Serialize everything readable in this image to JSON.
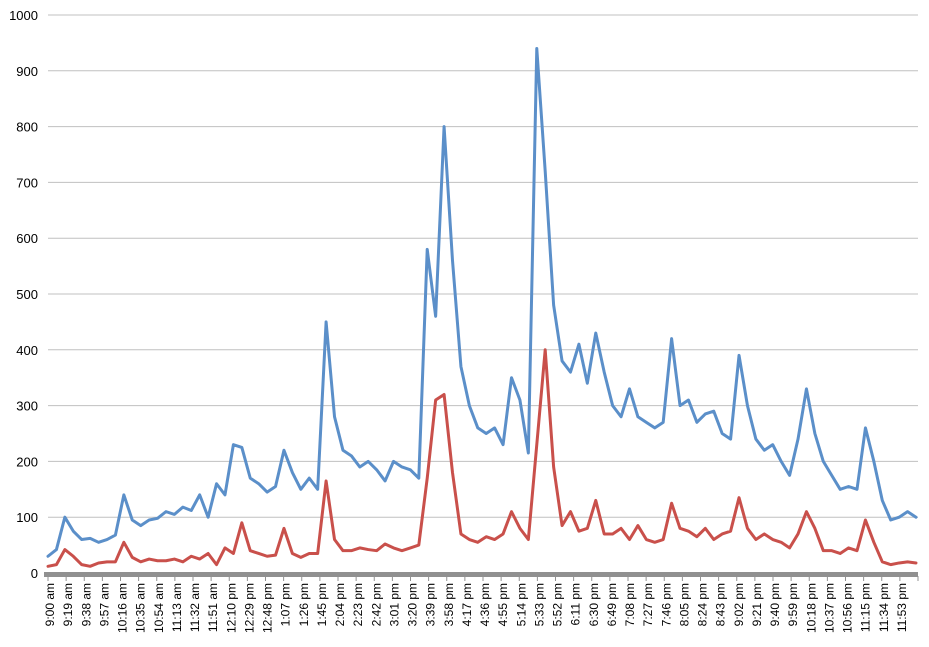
{
  "colors": {
    "series1": "#5b8fc9",
    "series2": "#c9504b",
    "grid": "#c0c0c0",
    "axis": "#909090",
    "text": "#000000"
  },
  "chart_data": {
    "type": "line",
    "title": "",
    "xlabel": "",
    "ylabel": "",
    "ylim": [
      0,
      1000
    ],
    "y_ticks": [
      "0",
      "100",
      "200",
      "300",
      "400",
      "500",
      "600",
      "700",
      "800",
      "900",
      "1000"
    ],
    "grid": true,
    "legend": "none",
    "x_tick_labels": [
      "9:00 am",
      "9:19 am",
      "9:38 am",
      "9:57 am",
      "10:16 am",
      "10:35 am",
      "10:54 am",
      "11:13 am",
      "11:32 am",
      "11:51 am",
      "12:10 pm",
      "12:29 pm",
      "12:48 pm",
      "1:07 pm",
      "1:26 pm",
      "1:45 pm",
      "2:04 pm",
      "2:23 pm",
      "2:42 pm",
      "3:01 pm",
      "3:20 pm",
      "3:39 pm",
      "3:58 pm",
      "4:17 pm",
      "4:36 pm",
      "4:55 pm",
      "5:14 pm",
      "5:33 pm",
      "5:52 pm",
      "6:11 pm",
      "6:30 pm",
      "6:49 pm",
      "7:08 pm",
      "7:27 pm",
      "7:46 pm",
      "8:05 pm",
      "8:24 pm",
      "8:43 pm",
      "9:02 pm",
      "9:21 pm",
      "9:40 pm",
      "9:59 pm",
      "10:18 pm",
      "10:37 pm",
      "10:56 pm",
      "11:15 pm",
      "11:34 pm",
      "11:53 pm"
    ],
    "series": [
      {
        "values": [
          30,
          42,
          100,
          75,
          60,
          62,
          55,
          60,
          68,
          140,
          95,
          85,
          95,
          98,
          110,
          105,
          118,
          112,
          140,
          100,
          160,
          140,
          230,
          225,
          170,
          160,
          145,
          155,
          220,
          180,
          150,
          170,
          150,
          450,
          280,
          220,
          210,
          190,
          200,
          185,
          165,
          200,
          190,
          185,
          170,
          580,
          460,
          800,
          560,
          370,
          300,
          260,
          250,
          260,
          230,
          350,
          310,
          215,
          940,
          720,
          480,
          380,
          360,
          410,
          340,
          430,
          360,
          300,
          280,
          330,
          280,
          270,
          260,
          270,
          420,
          300,
          310,
          270,
          285,
          290,
          250,
          240,
          390,
          300,
          240,
          220,
          230,
          200,
          175,
          240,
          330,
          250,
          200,
          175,
          150,
          155,
          150,
          260,
          200,
          130,
          95,
          100,
          110,
          100
        ]
      },
      {
        "values": [
          12,
          15,
          42,
          30,
          15,
          12,
          18,
          20,
          20,
          55,
          28,
          20,
          25,
          22,
          22,
          25,
          20,
          30,
          25,
          35,
          15,
          45,
          35,
          90,
          40,
          35,
          30,
          32,
          80,
          35,
          28,
          35,
          35,
          165,
          60,
          40,
          40,
          45,
          42,
          40,
          52,
          45,
          40,
          45,
          50,
          170,
          310,
          320,
          180,
          70,
          60,
          55,
          65,
          60,
          70,
          110,
          80,
          60,
          230,
          400,
          190,
          85,
          110,
          75,
          80,
          130,
          70,
          70,
          80,
          60,
          85,
          60,
          55,
          60,
          125,
          80,
          75,
          65,
          80,
          60,
          70,
          75,
          135,
          80,
          60,
          70,
          60,
          55,
          45,
          70,
          110,
          80,
          40,
          40,
          35,
          45,
          40,
          95,
          55,
          20,
          15,
          18,
          20,
          18
        ]
      }
    ]
  }
}
